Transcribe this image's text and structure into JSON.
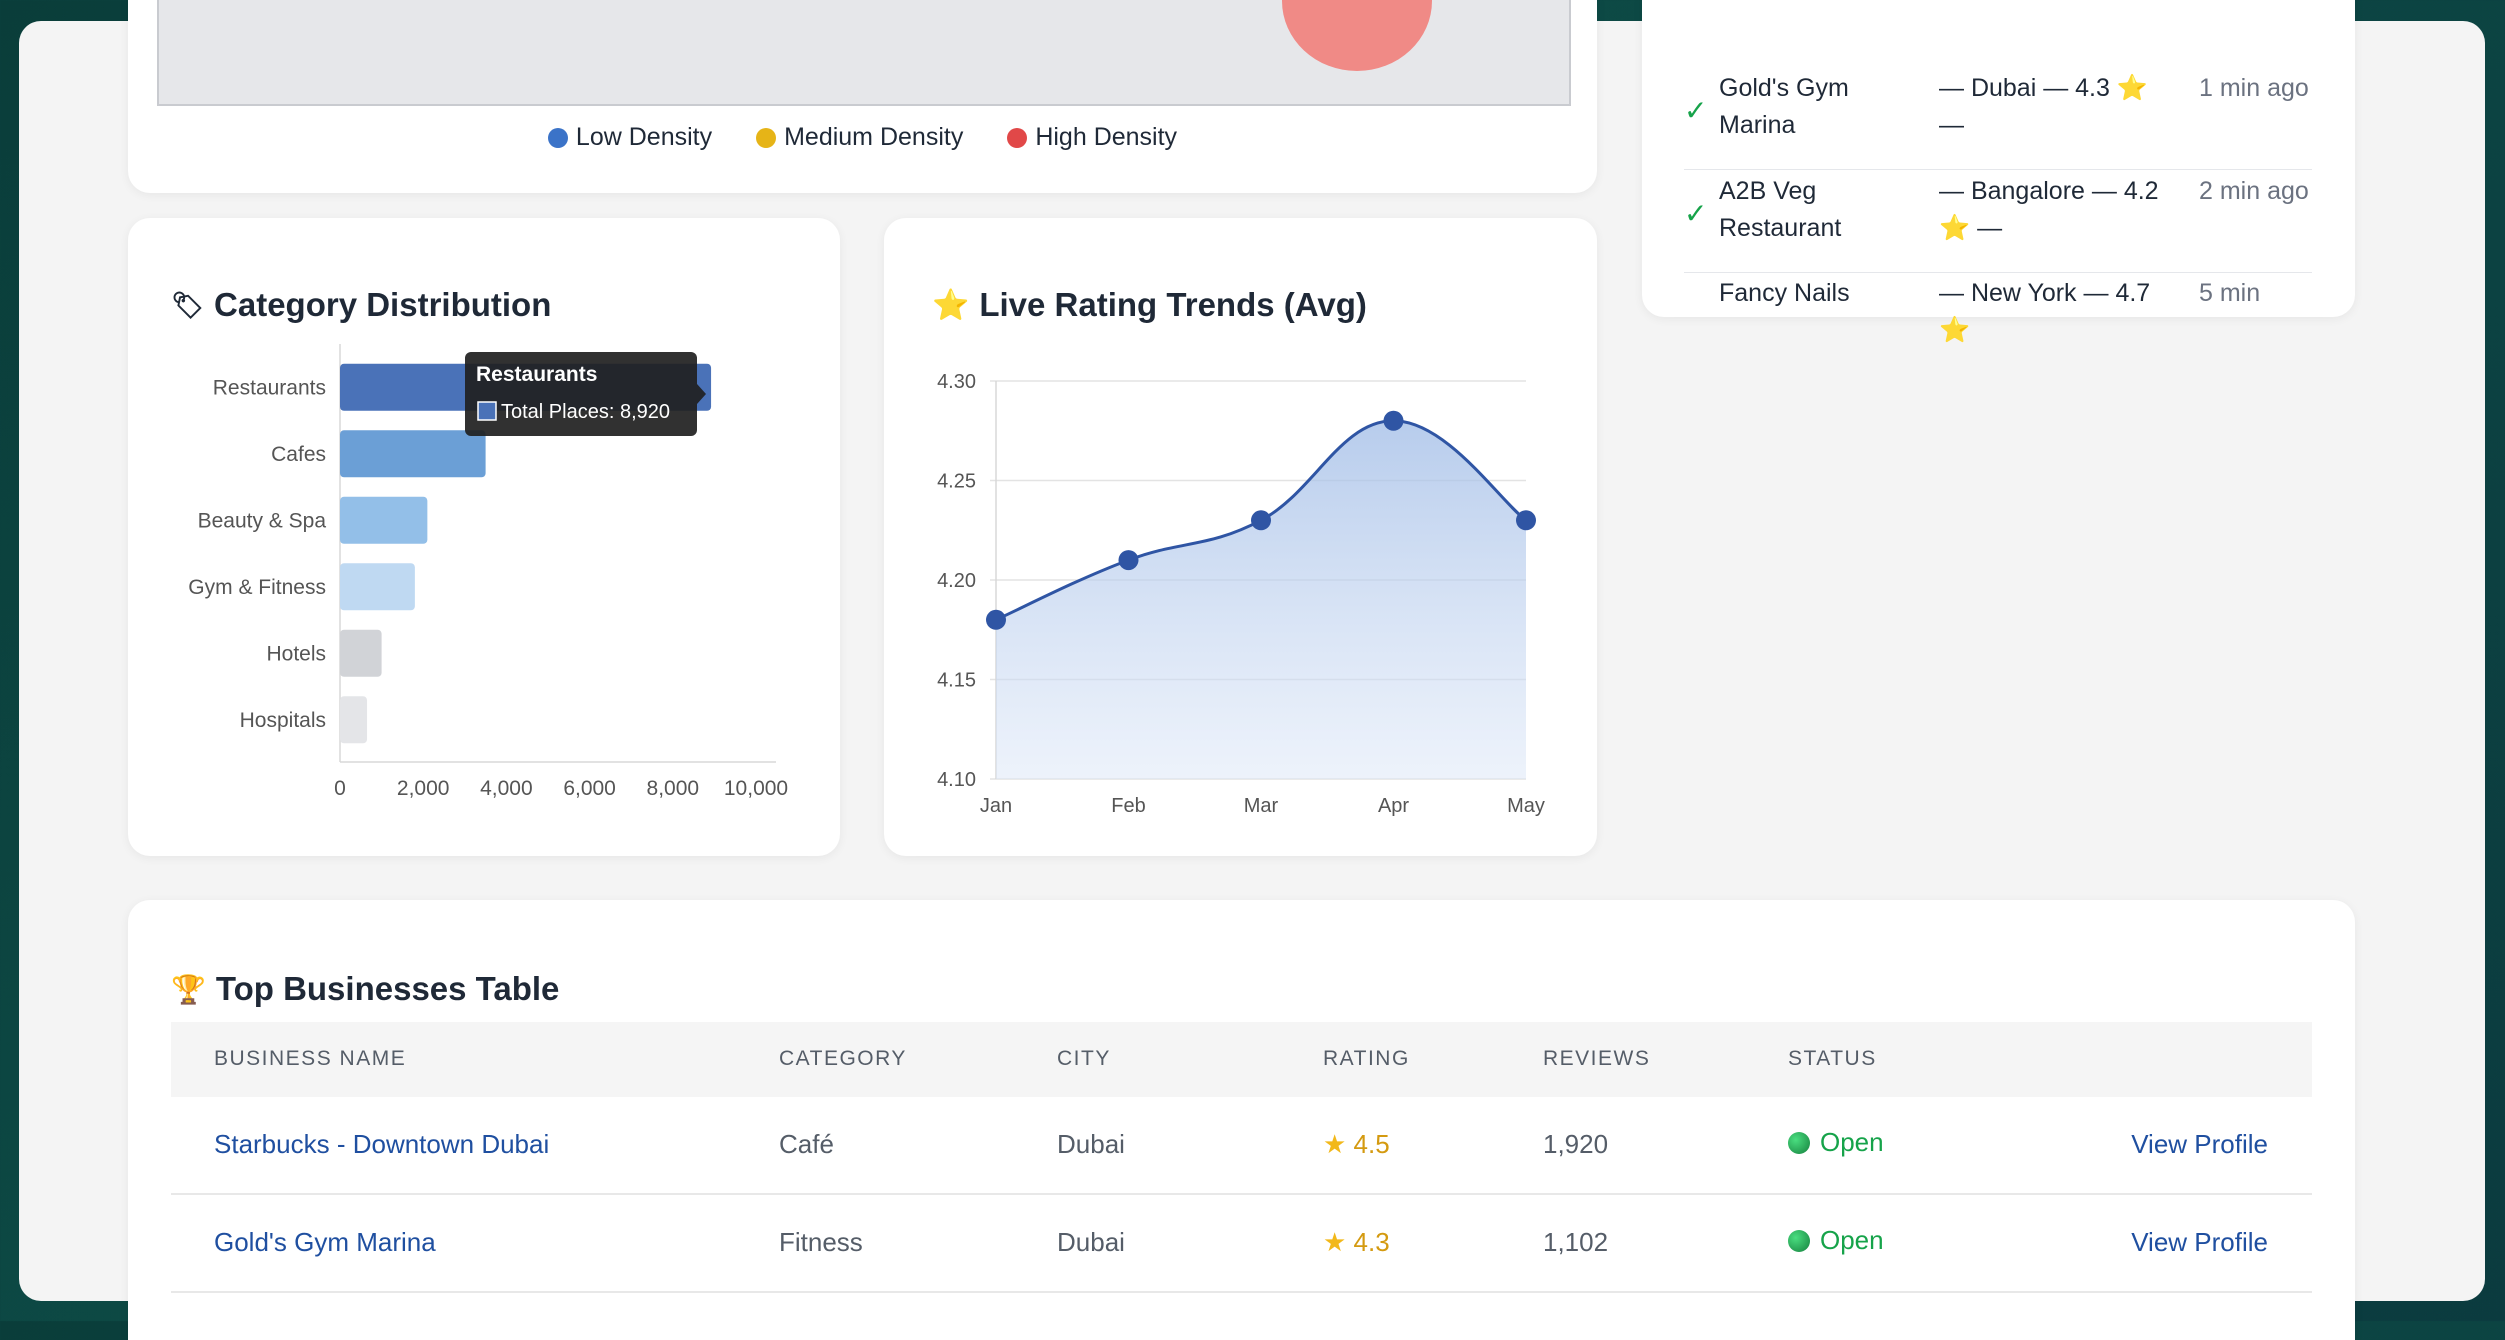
{
  "density_legend": [
    {
      "label": "Low Density",
      "color": "#3b73c8"
    },
    {
      "label": "Medium Density",
      "color": "#e6b417"
    },
    {
      "label": "High Density",
      "color": "#e14848"
    }
  ],
  "feed": [
    {
      "name": "Gold's Gym Marina",
      "meta": "— Dubai — 4.3 ⭐ —",
      "time": "1 min ago"
    },
    {
      "name": "A2B Veg Restaurant",
      "meta": "— Bangalore — 4.2 ⭐ —",
      "time": "2 min ago"
    },
    {
      "name": "Fancy Nails",
      "meta": "— New York — 4.7 ⭐",
      "time": "5 min"
    }
  ],
  "category_card": {
    "icon": "🏷",
    "title": "Category Distribution"
  },
  "rating_card": {
    "icon": "⭐",
    "title": "Live Rating Trends (Avg)"
  },
  "chart_data": [
    {
      "type": "bar",
      "orientation": "horizontal",
      "categories": [
        "Restaurants",
        "Cafes",
        "Beauty & Spa",
        "Gym & Fitness",
        "Hotels",
        "Hospitals"
      ],
      "series": [
        {
          "name": "Total Places",
          "values": [
            8920,
            3500,
            2100,
            1800,
            1000,
            650
          ]
        }
      ],
      "colors": [
        "#4a72b8",
        "#6b9fd6",
        "#93bfe8",
        "#bfd9f2",
        "#d1d3d7",
        "#e4e5e8"
      ],
      "xlim": [
        0,
        10000
      ],
      "xticks": [
        "0",
        "2,000",
        "4,000",
        "6,000",
        "8,000",
        "10,000"
      ],
      "tooltip": {
        "title": "Restaurants",
        "label": "Total Places: 8,920"
      }
    },
    {
      "type": "area",
      "x": [
        "Jan",
        "Feb",
        "Mar",
        "Apr",
        "May"
      ],
      "series": [
        {
          "values": [
            4.18,
            4.21,
            4.23,
            4.28,
            4.23
          ]
        }
      ],
      "ylim": [
        4.1,
        4.3
      ],
      "yticks": [
        "4.30",
        "4.25",
        "4.20",
        "4.15",
        "4.10"
      ],
      "color": "#2f55a4"
    }
  ],
  "table": {
    "icon": "🏆",
    "title": "Top Businesses Table",
    "headers": [
      "BUSINESS NAME",
      "CATEGORY",
      "CITY",
      "RATING",
      "REVIEWS",
      "STATUS"
    ],
    "rows": [
      {
        "name": "Starbucks - Downtown Dubai",
        "category": "Café",
        "city": "Dubai",
        "rating": "4.5",
        "reviews": "1,920",
        "status": "Open",
        "action": "View Profile"
      },
      {
        "name": "Gold's Gym Marina",
        "category": "Fitness",
        "city": "Dubai",
        "rating": "4.3",
        "reviews": "1,102",
        "status": "Open",
        "action": "View Profile"
      }
    ]
  }
}
